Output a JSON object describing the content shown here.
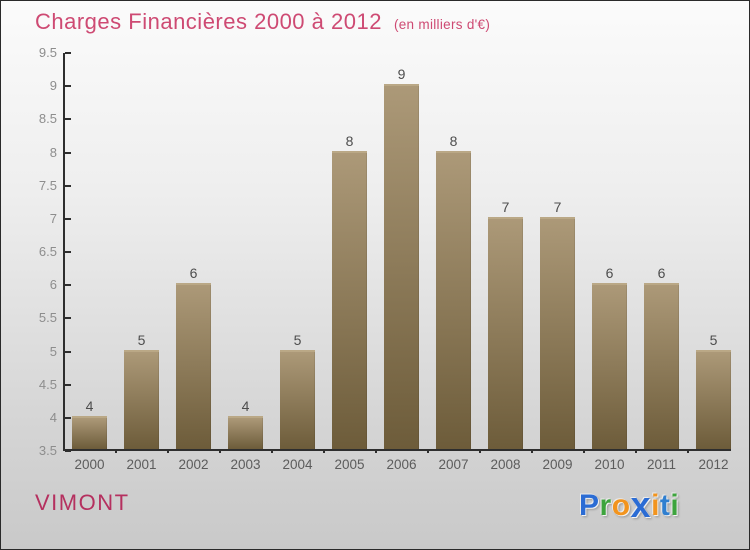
{
  "header": {
    "title": "Charges Financières 2000 à 2012",
    "subtitle": "(en milliers d'€)",
    "title_color": "#ce4a73"
  },
  "chart_data": {
    "type": "bar",
    "title": "Charges Financières 2000 à 2012",
    "subtitle": "(en milliers d'€)",
    "categories": [
      "2000",
      "2001",
      "2002",
      "2003",
      "2004",
      "2005",
      "2006",
      "2007",
      "2008",
      "2009",
      "2010",
      "2011",
      "2012"
    ],
    "values": [
      4,
      5,
      6,
      4,
      5,
      8,
      9,
      8,
      7,
      7,
      6,
      6,
      5
    ],
    "xlabel": "",
    "ylabel": "",
    "ylim": [
      3.5,
      9.5
    ],
    "ytick_step": 0.5,
    "grid": false,
    "legend": false,
    "value_labels_shown": true,
    "bar_color_top": "#ac9978",
    "bar_color_bottom": "#6d5c3a"
  },
  "footer": {
    "company": "VIMONT",
    "company_color": "#b5305f",
    "logo_letters": [
      {
        "ch": "P",
        "color": "#2b6cd4"
      },
      {
        "ch": "r",
        "color": "#3da43d"
      },
      {
        "ch": "o",
        "color": "#f2941e"
      },
      {
        "ch": "x",
        "color": "#2b6cd4"
      },
      {
        "ch": "i",
        "color": "#f2941e"
      },
      {
        "ch": "t",
        "color": "#2f7fd0"
      },
      {
        "ch": "i",
        "color": "#3da43d"
      }
    ]
  },
  "colors": {
    "axis": "#2e2e2e",
    "tick_label": "#8d8d8d",
    "value_label": "#4d4d4d",
    "year_label": "#5c5c5c"
  }
}
